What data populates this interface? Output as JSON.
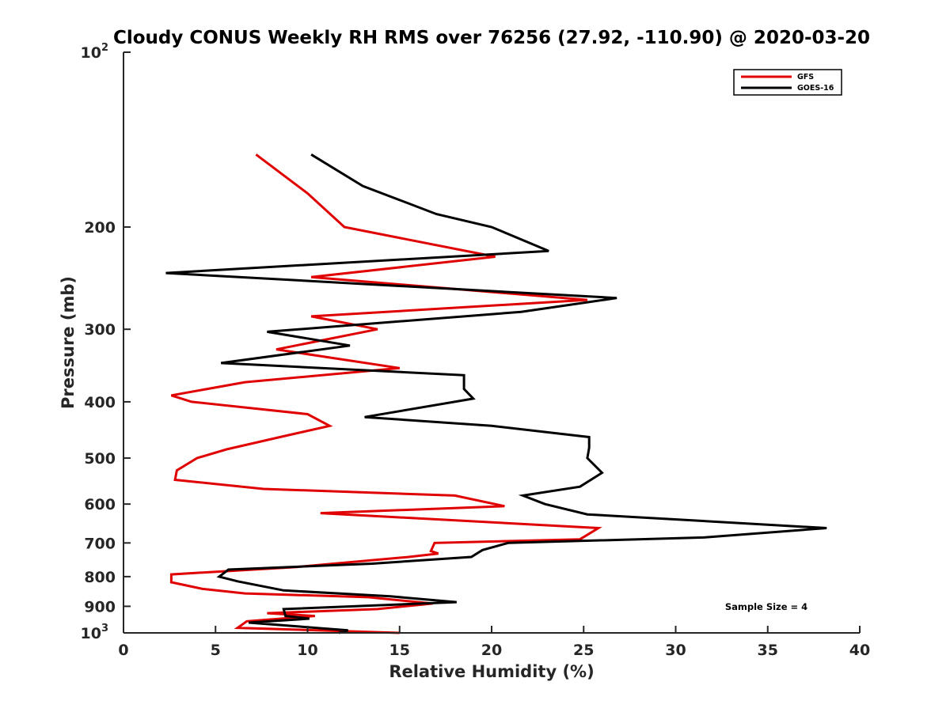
{
  "chart_data": {
    "type": "line",
    "title": "Cloudy CONUS Weekly RH RMS over 76256 (27.92, -110.90) @ 2020-03-20",
    "xlabel": "Relative Humidity (%)",
    "ylabel": "Pressure (mb)",
    "xlim": [
      0,
      40
    ],
    "ylim": [
      100,
      1000
    ],
    "yscale": "log",
    "y_reversed": true,
    "grid": false,
    "legend_position": "top-right",
    "x_ticks": [
      "0",
      "5",
      "10",
      "15",
      "20",
      "25",
      "30",
      "35",
      "40"
    ],
    "y_ticks": [
      {
        "value": 100,
        "base": "10",
        "exp": "2"
      },
      {
        "value": 200,
        "label": "200"
      },
      {
        "value": 300,
        "label": "300"
      },
      {
        "value": 400,
        "label": "400"
      },
      {
        "value": 500,
        "label": "500"
      },
      {
        "value": 600,
        "label": "600"
      },
      {
        "value": 700,
        "label": "700"
      },
      {
        "value": 800,
        "label": "800"
      },
      {
        "value": 900,
        "label": "900"
      },
      {
        "value": 1000,
        "base": "10",
        "exp": "3"
      }
    ],
    "annotation": "Sample Size = 4",
    "series": [
      {
        "name": "GFS",
        "color": "#e00000",
        "points": [
          [
            7.2,
            150
          ],
          [
            10,
            175
          ],
          [
            12,
            200
          ],
          [
            20.2,
            225
          ],
          [
            10.2,
            244
          ],
          [
            25.2,
            267
          ],
          [
            10.2,
            285
          ],
          [
            13.8,
            300
          ],
          [
            8.3,
            325
          ],
          [
            15,
            350
          ],
          [
            6.6,
            370
          ],
          [
            2.6,
            390
          ],
          [
            3.7,
            400
          ],
          [
            10,
            420
          ],
          [
            11.2,
            440
          ],
          [
            8.5,
            460
          ],
          [
            5.6,
            483
          ],
          [
            4,
            500
          ],
          [
            2.9,
            525
          ],
          [
            2.8,
            545
          ],
          [
            7.6,
            565
          ],
          [
            18,
            580
          ],
          [
            20.7,
            605
          ],
          [
            10.7,
            622
          ],
          [
            25.8,
            660
          ],
          [
            24.8,
            690
          ],
          [
            16.9,
            700
          ],
          [
            16.7,
            723
          ],
          [
            17.1,
            730
          ],
          [
            15.5,
            740
          ],
          [
            9.4,
            770
          ],
          [
            2.6,
            793
          ],
          [
            2.6,
            818
          ],
          [
            4.3,
            840
          ],
          [
            6.6,
            855
          ],
          [
            13.3,
            868
          ],
          [
            16.8,
            890
          ],
          [
            13.8,
            910
          ],
          [
            7.8,
            925
          ],
          [
            10.4,
            935
          ],
          [
            6.7,
            955
          ],
          [
            6.2,
            980
          ],
          [
            15,
            1000
          ]
        ]
      },
      {
        "name": "GOES-16",
        "color": "#000000",
        "points": [
          [
            10.2,
            150
          ],
          [
            13,
            170
          ],
          [
            17,
            190
          ],
          [
            20,
            200
          ],
          [
            23.1,
            220
          ],
          [
            2.3,
            240
          ],
          [
            26.8,
            265
          ],
          [
            21.6,
            280
          ],
          [
            7.8,
            303
          ],
          [
            12.3,
            320
          ],
          [
            5.3,
            343
          ],
          [
            18.5,
            360
          ],
          [
            18.5,
            380
          ],
          [
            19,
            395
          ],
          [
            13.1,
            425
          ],
          [
            20,
            440
          ],
          [
            25.3,
            460
          ],
          [
            25.3,
            480
          ],
          [
            25.2,
            500
          ],
          [
            26,
            530
          ],
          [
            24.8,
            560
          ],
          [
            21.7,
            580
          ],
          [
            22.9,
            600
          ],
          [
            25.2,
            625
          ],
          [
            38.2,
            660
          ],
          [
            31.5,
            685
          ],
          [
            20.9,
            700
          ],
          [
            19.5,
            720
          ],
          [
            18.9,
            740
          ],
          [
            13.5,
            760
          ],
          [
            5.7,
            778
          ],
          [
            5.2,
            800
          ],
          [
            6.2,
            815
          ],
          [
            8.7,
            845
          ],
          [
            14.5,
            865
          ],
          [
            18.1,
            885
          ],
          [
            8.7,
            910
          ],
          [
            8.8,
            935
          ],
          [
            10.1,
            945
          ],
          [
            6.8,
            960
          ],
          [
            12.2,
            990
          ],
          [
            11.7,
            1000
          ]
        ]
      }
    ]
  }
}
